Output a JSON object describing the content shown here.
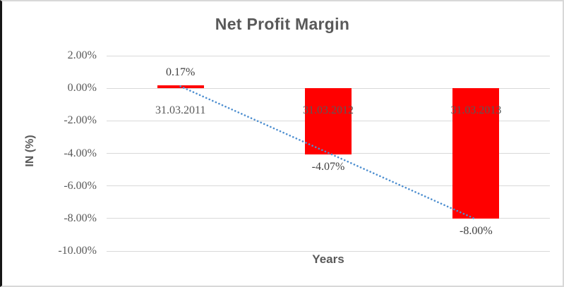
{
  "chart": {
    "title": "Net Profit Margin",
    "y_axis_title": "IN (%)",
    "x_axis_title": "Years"
  },
  "chart_data": {
    "type": "bar",
    "title": "Net Profit Margin",
    "xlabel": "Years",
    "ylabel": "IN (%)",
    "categories": [
      "31.03.2011",
      "31.03.2012",
      "31.03.2013"
    ],
    "values": [
      0.17,
      -4.07,
      -8.0
    ],
    "data_labels": [
      "0.17%",
      "-4.07%",
      "-8.00%"
    ],
    "y_ticks": [
      "2.00%",
      "0.00%",
      "-2.00%",
      "-4.00%",
      "-6.00%",
      "-8.00%",
      "-10.00%"
    ],
    "y_tick_values": [
      2,
      0,
      -2,
      -4,
      -6,
      -8,
      -10
    ],
    "ylim": [
      -10,
      2
    ],
    "grid": true,
    "legend": "none",
    "trendline": {
      "type": "linear",
      "style": "round-dotted"
    }
  },
  "colors": {
    "bar": "#ff0000",
    "trendline": "#4e8fd0",
    "gridline": "#d9d9d9",
    "text": "#595959",
    "data_label_text": "#3f3f3f"
  }
}
